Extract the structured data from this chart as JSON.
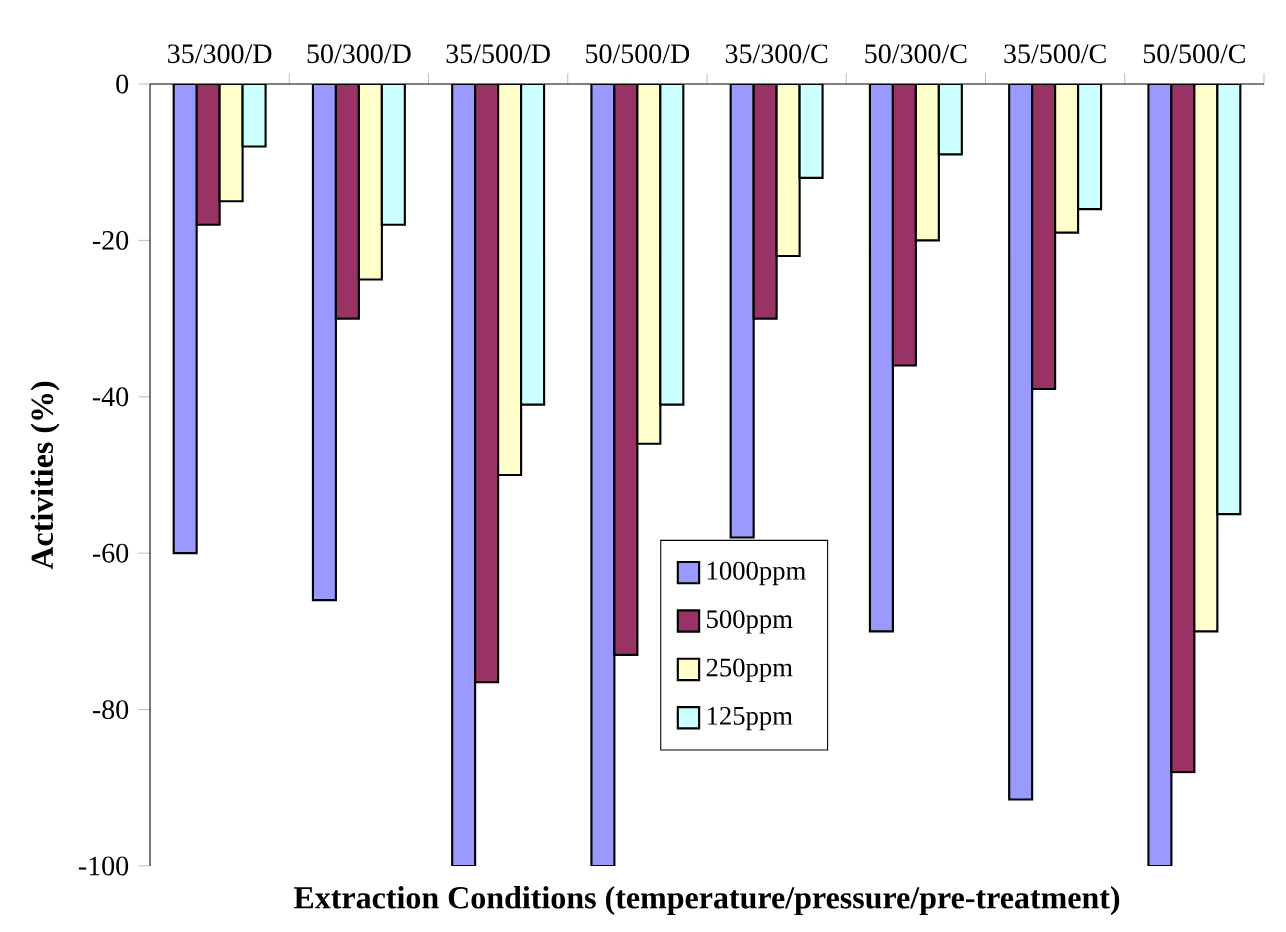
{
  "chart_data": {
    "type": "bar",
    "xlabel": "Extraction Conditions (temperature/pressure/pre-treatment)",
    "ylabel": "Activities (%)",
    "categories": [
      "35/300/D",
      "50/300/D",
      "35/500/D",
      "50/500/D",
      "35/300/C",
      "50/300/C",
      "35/500/C",
      "50/500/C"
    ],
    "series": [
      {
        "name": "1000ppm",
        "color": "#9999ff",
        "values": [
          -60,
          -66,
          -100,
          -100,
          -58,
          -70,
          -91.5,
          -100
        ]
      },
      {
        "name": "500ppm",
        "color": "#993366",
        "values": [
          -18,
          -30,
          -76.5,
          -73,
          -30,
          -36,
          -39,
          -88
        ]
      },
      {
        "name": "250ppm",
        "color": "#ffffcc",
        "values": [
          -15,
          -25,
          -50,
          -46,
          -22,
          -20,
          -19,
          -70
        ]
      },
      {
        "name": "125ppm",
        "color": "#ccffff",
        "values": [
          -8,
          -18,
          -41,
          -41,
          -12,
          -9,
          -16,
          -55
        ]
      }
    ],
    "ylim": [
      -100,
      0
    ],
    "yticks": [
      0,
      -20,
      -40,
      -60,
      -80,
      -100
    ],
    "legend": "bottom",
    "grid": false
  }
}
